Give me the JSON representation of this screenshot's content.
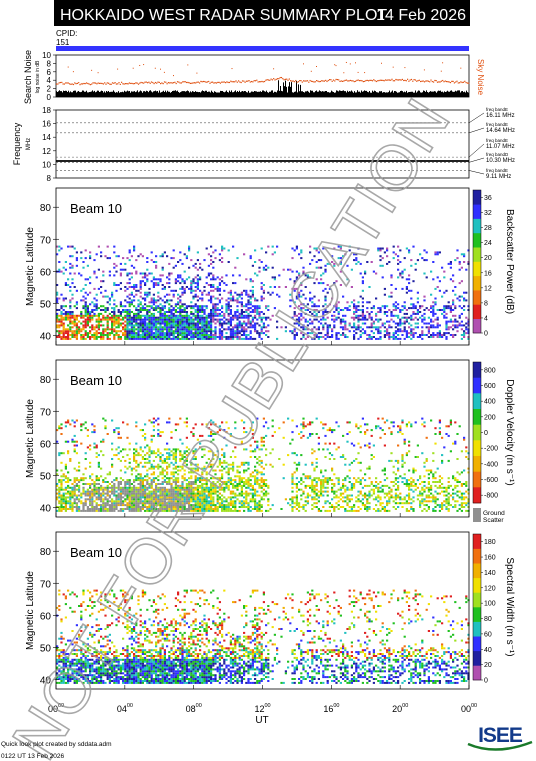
{
  "header": {
    "title": "HOKKAIDO WEST RADAR SUMMARY PLOT",
    "date": "14 Feb 2026",
    "cpid_label": "CPID:",
    "cpid_value": "151"
  },
  "colors": {
    "banner_bg": "#000000",
    "cpid_bar": "#3333ff",
    "noise_series": "#e05010",
    "noise_floor": "#000000",
    "watermark": "#9a9a9a"
  },
  "footer": {
    "credit": "Quick look plot created by sddata.adm",
    "timestamp": "0122 UT 13 Feb 2026",
    "logo": "ISEE"
  },
  "watermark": "NOT FOR PUBLICATION",
  "chart_data": [
    {
      "type": "line",
      "id": "noise",
      "ylabel": "Search Noise",
      "ylabel_sub": "log noise in dB",
      "ylim": [
        0,
        10
      ],
      "yticks": [
        0,
        2,
        4,
        6,
        8,
        10
      ],
      "series": [
        {
          "name": "Sky Noise",
          "color": "#e05010",
          "x": [
            0,
            2,
            4,
            6,
            8,
            10,
            12,
            13,
            14,
            16,
            18,
            20,
            22,
            24
          ],
          "y": [
            3.4,
            3.3,
            3.4,
            3.5,
            3.6,
            3.7,
            4.0,
            4.6,
            3.8,
            4.1,
            4.0,
            4.2,
            3.9,
            3.6
          ]
        }
      ],
      "floor": {
        "x": [
          0,
          24
        ],
        "y": [
          1.0,
          1.0
        ]
      }
    },
    {
      "type": "line",
      "id": "frequency",
      "ylabel": "Frequency",
      "ylabel_sub": "MHz",
      "ylim": [
        8,
        18
      ],
      "yticks": [
        8,
        10,
        12,
        14,
        16,
        18
      ],
      "bands": [
        {
          "label": "freq bandE",
          "value": "16.11 MHz",
          "mhz": 16.11
        },
        {
          "label": "freq bandE",
          "value": "14.64 MHz",
          "mhz": 14.64
        },
        {
          "label": "freq bandE",
          "value": "11.07 MHz",
          "mhz": 11.07
        },
        {
          "label": "freq bandD",
          "value": "10.30 MHz",
          "mhz": 10.3
        },
        {
          "label": "freq bandE",
          "value": "9.11 MHz",
          "mhz": 9.11
        }
      ],
      "active_mhz": 10.5
    },
    {
      "type": "heatmap",
      "id": "power",
      "beam": "Beam 10",
      "ylabel": "Magnetic Latitude",
      "ylim": [
        37,
        86
      ],
      "yticks": [
        40,
        50,
        60,
        70,
        80
      ],
      "colorbar": {
        "label": "Backscatter Power (dB)",
        "ticks": [
          "0",
          "4",
          "8",
          "12",
          "16",
          "20",
          "24",
          "28",
          "32",
          "36"
        ],
        "colors": [
          "#b050b0",
          "#e02020",
          "#f07010",
          "#f0b000",
          "#f0e000",
          "#a0e020",
          "#20c020",
          "#20c0c0",
          "#3030ff",
          "#2020a0"
        ]
      }
    },
    {
      "type": "heatmap",
      "id": "velocity",
      "beam": "Beam 10",
      "ylabel": "Magnetic Latitude",
      "ylim": [
        37,
        86
      ],
      "yticks": [
        40,
        50,
        60,
        70,
        80
      ],
      "colorbar": {
        "label": "Doppler Velocity (m s⁻¹)",
        "ticks": [
          "800",
          "600",
          "400",
          "200",
          "0",
          "-200",
          "-400",
          "-600",
          "-800"
        ],
        "colors": [
          "#2020a0",
          "#3030ff",
          "#20c0c0",
          "#20c020",
          "#a0e020",
          "#f0e000",
          "#f0b000",
          "#f07010",
          "#e02020"
        ],
        "ground_label": "Ground",
        "ground_label2": "Scatter",
        "ground_color": "#909090"
      }
    },
    {
      "type": "heatmap",
      "id": "width",
      "beam": "Beam 10",
      "ylabel": "Magnetic Latitude",
      "ylim": [
        37,
        86
      ],
      "yticks": [
        40,
        50,
        60,
        70,
        80
      ],
      "colorbar": {
        "label": "Spectral Width (m s⁻¹)",
        "ticks": [
          "0",
          "20",
          "40",
          "60",
          "80",
          "100",
          "120",
          "140",
          "160",
          "180"
        ],
        "colors": [
          "#b050b0",
          "#2020a0",
          "#3030ff",
          "#20c0c0",
          "#20c020",
          "#a0e020",
          "#f0e000",
          "#f0b000",
          "#f07010",
          "#e02020"
        ]
      }
    }
  ],
  "xaxis": {
    "label": "UT",
    "ticks": [
      {
        "hour": 0,
        "h": "00",
        "m": "00"
      },
      {
        "hour": 4,
        "h": "04",
        "m": "00"
      },
      {
        "hour": 8,
        "h": "08",
        "m": "00"
      },
      {
        "hour": 12,
        "h": "12",
        "m": "00"
      },
      {
        "hour": 16,
        "h": "16",
        "m": "00"
      },
      {
        "hour": 20,
        "h": "20",
        "m": "00"
      },
      {
        "hour": 24,
        "h": "00",
        "m": "00"
      }
    ]
  }
}
